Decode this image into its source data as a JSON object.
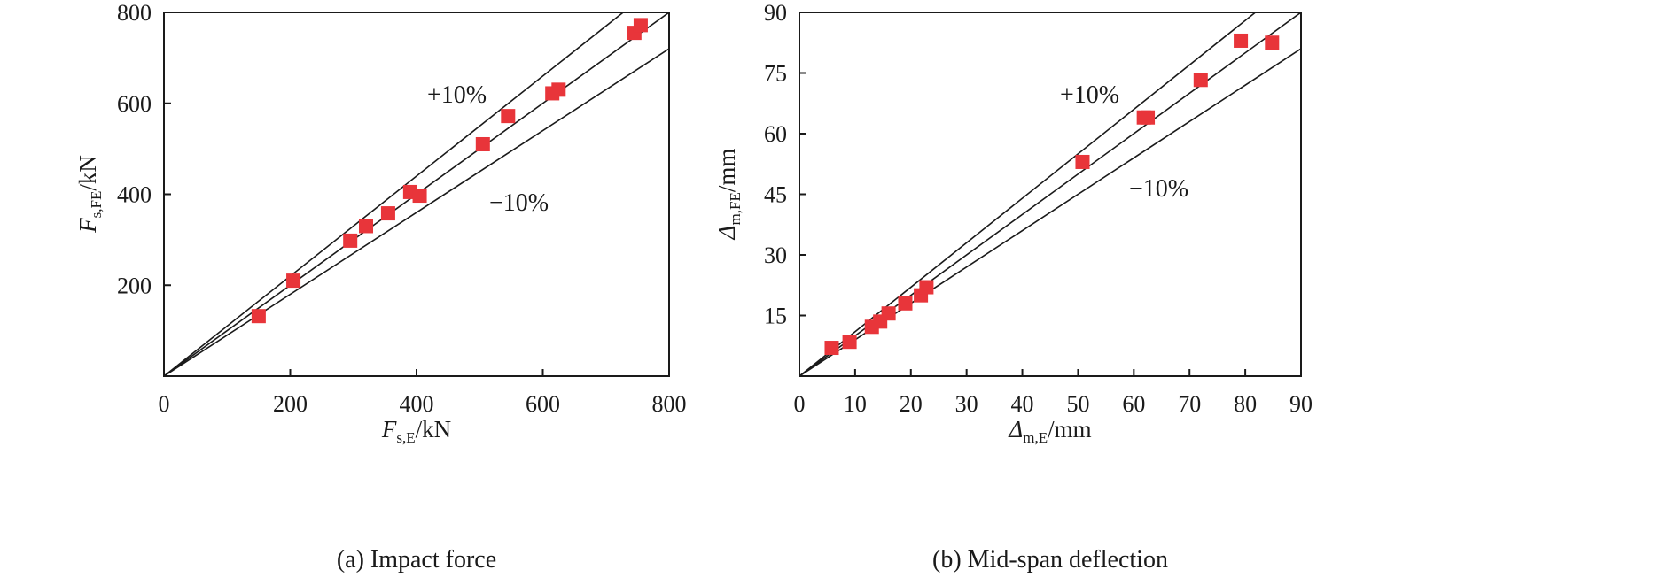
{
  "chart_data": [
    {
      "type": "scatter",
      "caption": "(a) Impact force",
      "xlabel": {
        "symbol": "F",
        "sub": "s,E",
        "unit": "/kN"
      },
      "ylabel": {
        "symbol": "F",
        "sub": "s,FE",
        "unit": "/kN"
      },
      "xlim": [
        0,
        800
      ],
      "ylim": [
        0,
        800
      ],
      "xticks": [
        0,
        200,
        400,
        600,
        800
      ],
      "yticks": [
        200,
        400,
        600,
        800
      ],
      "reference_lines": [
        {
          "label": "+10%",
          "slope": 1.1
        },
        {
          "label": "",
          "slope": 1.0
        },
        {
          "label": "−10%",
          "slope": 0.9
        }
      ],
      "marker_color": "#e8353a",
      "series": [
        {
          "x": [
            150,
            205,
            295,
            320,
            355,
            390,
            405,
            505,
            545,
            615,
            625,
            745,
            755
          ],
          "y": [
            132,
            210,
            298,
            330,
            358,
            405,
            397,
            510,
            572,
            622,
            630,
            755,
            772
          ]
        }
      ]
    },
    {
      "type": "scatter",
      "caption": "(b) Mid-span deflection",
      "xlabel": {
        "symbol": "Δ",
        "sub": "m,E",
        "unit": "/mm"
      },
      "ylabel": {
        "symbol": "Δ",
        "sub": "m,FE",
        "unit": "/mm"
      },
      "xlim": [
        0,
        90
      ],
      "ylim": [
        0,
        90
      ],
      "xticks": [
        0,
        10,
        20,
        30,
        40,
        50,
        60,
        70,
        80,
        90
      ],
      "yticks": [
        15,
        30,
        45,
        60,
        75,
        90
      ],
      "reference_lines": [
        {
          "label": "+10%",
          "slope": 1.1
        },
        {
          "label": "",
          "slope": 1.0
        },
        {
          "label": "−10%",
          "slope": 0.9
        }
      ],
      "marker_color": "#e8353a",
      "series": [
        {
          "x": [
            5.8,
            9.0,
            13.0,
            14.5,
            16.0,
            19.0,
            21.8,
            22.8,
            50.8,
            61.8,
            62.5,
            72.0,
            79.2,
            84.8
          ],
          "y": [
            7.0,
            8.5,
            12.2,
            13.5,
            15.5,
            18.0,
            20.0,
            22.0,
            53.0,
            64.0,
            64.0,
            73.3,
            83.0,
            82.5
          ]
        }
      ]
    }
  ]
}
